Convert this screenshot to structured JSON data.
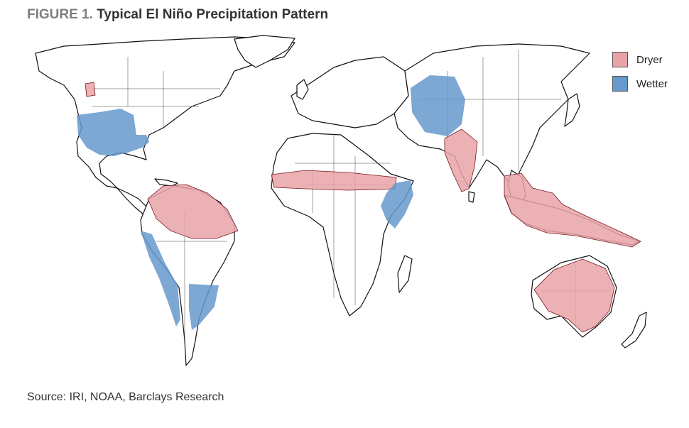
{
  "title": {
    "figure_label": "FIGURE 1.",
    "text": "Typical El Niño Precipitation Pattern"
  },
  "legend": [
    {
      "label": "Dryer",
      "color": "#e8a3a8"
    },
    {
      "label": "Wetter",
      "color": "#6699cc"
    }
  ],
  "source": "Source: IRI, NOAA, Barclays Research",
  "colors": {
    "land": "#ffffff",
    "border": "#111111",
    "dryer": "#e8a3a8",
    "wetter": "#6699cc",
    "dry_overlay_border": "#7a1a22"
  }
}
